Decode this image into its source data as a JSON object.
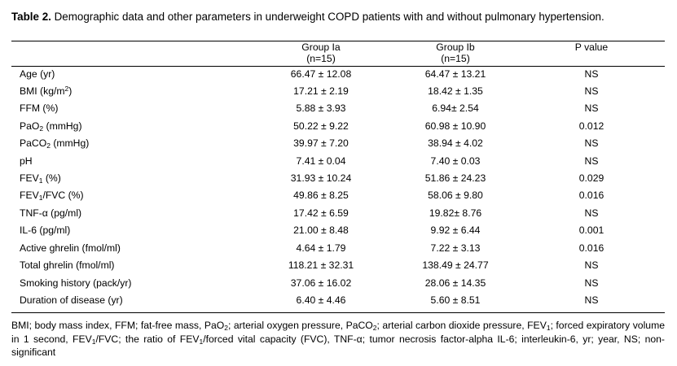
{
  "caption": {
    "label": "Table 2.",
    "text": " Demographic data and other parameters in underweight COPD patients with and without pulmonary hypertension."
  },
  "table": {
    "headers": [
      {
        "line1": "Group Ia",
        "line2": "(n=15)"
      },
      {
        "line1": "Group Ib",
        "line2": "(n=15)"
      },
      {
        "line1": "P value",
        "line2": ""
      }
    ],
    "rows": [
      {
        "param": "Age (yr)",
        "g1": "66.47 ± 12.08",
        "g2": "64.47 ± 13.21",
        "p": "NS"
      },
      {
        "param_pre": "BMI (kg/m",
        "param_sup": "2",
        "param_post": ")",
        "g1": "17.21 ± 2.19",
        "g2": "18.42 ± 1.35",
        "p": "NS"
      },
      {
        "param": "FFM (%)",
        "g1": "5.88 ± 3.93",
        "g2": "6.94± 2.54",
        "p": "NS"
      },
      {
        "param_pre": "PaO",
        "param_sub": "2",
        "param_post": " (mmHg)",
        "g1": "50.22 ± 9.22",
        "g2": "60.98 ± 10.90",
        "p": "0.012"
      },
      {
        "param_pre": "PaCO",
        "param_sub": "2",
        "param_post": " (mmHg)",
        "g1": "39.97 ± 7.20",
        "g2": "38.94 ± 4.02",
        "p": "NS"
      },
      {
        "param": "pH",
        "g1": "7.41 ± 0.04",
        "g2": "7.40 ± 0.03",
        "p": "NS"
      },
      {
        "param_pre": "FEV",
        "param_sub": "1",
        "param_post": " (%)",
        "g1": "31.93 ± 10.24",
        "g2": "51.86 ± 24.23",
        "p": "0.029"
      },
      {
        "param_pre": "FEV",
        "param_sub": "1",
        "param_post": "/FVC (%)",
        "g1": "49.86 ± 8.25",
        "g2": "58.06 ± 9.80",
        "p": "0.016"
      },
      {
        "param": "TNF-α (pg/ml)",
        "g1": "17.42 ± 6.59",
        "g2": "19.82± 8.76",
        "p": "NS"
      },
      {
        "param": "IL-6 (pg/ml)",
        "g1": "21.00 ± 8.48",
        "g2": "9.92 ± 6.44",
        "p": "0.001"
      },
      {
        "param": "Active ghrelin (fmol/ml)",
        "g1": "4.64 ± 1.79",
        "g2": "7.22 ± 3.13",
        "p": "0.016"
      },
      {
        "param": "Total ghrelin (fmol/ml)",
        "g1": "118.21 ± 32.31",
        "g2": "138.49 ± 24.77",
        "p": "NS"
      },
      {
        "param": "Smoking history (pack/yr)",
        "g1": "37.06 ± 16.02",
        "g2": "28.06 ± 14.35",
        "p": "NS"
      },
      {
        "param": "Duration of disease (yr)",
        "g1": "6.40 ± 4.46",
        "g2": "5.60 ± 8.51",
        "p": "NS"
      }
    ]
  },
  "footnote": {
    "p1": "BMI; body mass index, FFM; fat-free mass, PaO",
    "s1": "2",
    "p2": "; arterial oxygen pressure, PaCO",
    "s2": "2",
    "p3": "; arterial carbon dioxide pressure, FEV",
    "s3": "1",
    "p4": "; forced expiratory volume in 1 second, FEV",
    "s4": "1",
    "p5": "/FVC; the ratio of  FEV",
    "s5": "1",
    "p6": "/forced vital capacity (FVC), TNF-α; tumor necrosis factor-alpha IL-6; interleukin-6, yr; year, NS; non-significant"
  }
}
